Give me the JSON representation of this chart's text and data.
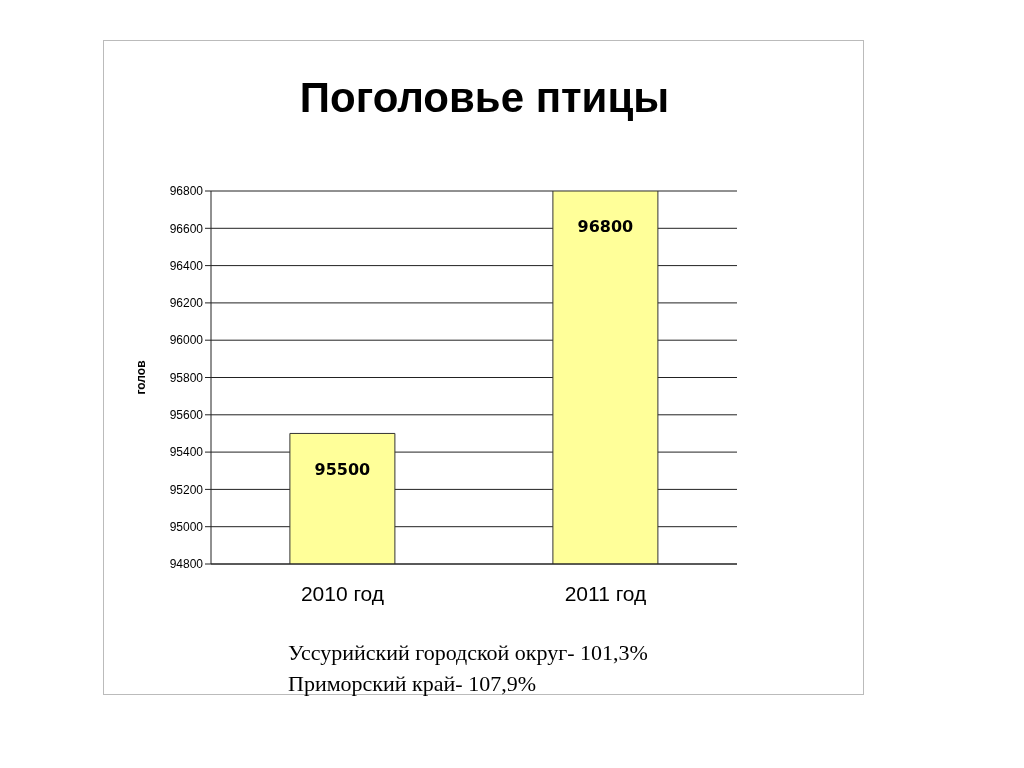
{
  "chart_data": {
    "type": "bar",
    "title": "Поголовье птицы",
    "ylabel": "голов",
    "categories": [
      "2010 год",
      "2011 год"
    ],
    "values": [
      95500,
      96800
    ],
    "color": "#ffff99",
    "ylim": [
      94800,
      96800
    ],
    "yticks": [
      94800,
      95000,
      95200,
      95400,
      95600,
      95800,
      96000,
      96200,
      96400,
      96600,
      96800
    ],
    "grid": "y",
    "data_labels": true,
    "annotations": [
      "Уссурийский городской округ- 101,3%",
      "Приморский край- 107,9%"
    ]
  }
}
